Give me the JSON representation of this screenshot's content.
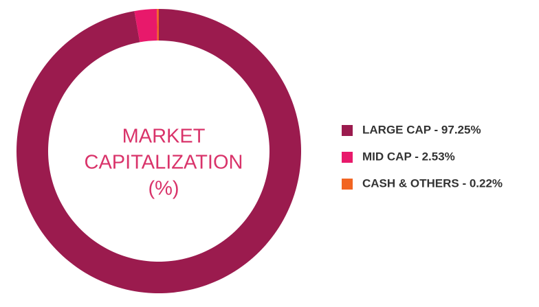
{
  "chart_data": {
    "type": "donut",
    "center_label": [
      "MARKET",
      "CAPITALIZATION",
      "(%)"
    ],
    "categories": [
      "LARGE CAP - 97.25%",
      "MID CAP - 2.53%",
      "CASH & OTHERS - 0.22%"
    ],
    "values": [
      97.25,
      2.53,
      0.22
    ],
    "colors": [
      "#9b1b4e",
      "#e8196b",
      "#f26522"
    ],
    "center_color": "#d9336a"
  }
}
